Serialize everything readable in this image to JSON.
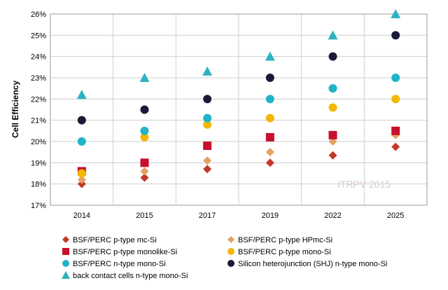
{
  "chart_data": {
    "type": "scatter",
    "ylabel": "Cell Efficiency",
    "categories": [
      "2014",
      "2015",
      "2017",
      "2019",
      "2022",
      "2025"
    ],
    "ylim": [
      0.17,
      0.26
    ],
    "yticks": [
      "17%",
      "18%",
      "19%",
      "20%",
      "21%",
      "22%",
      "23%",
      "24%",
      "25%",
      "26%"
    ],
    "grid": true,
    "legend_position": "bottom",
    "watermark": "ITRPV 2015",
    "series": [
      {
        "name": "BSF/PERC p-type mc-Si",
        "marker": "diamond",
        "color": "#c0392b",
        "values": [
          0.18,
          0.183,
          0.187,
          0.19,
          0.1935,
          0.1975
        ]
      },
      {
        "name": "BSF/PERC p-type HPmc-Si",
        "marker": "diamond",
        "color": "#e6a063",
        "values": [
          0.182,
          0.186,
          0.191,
          0.195,
          0.2,
          0.203
        ]
      },
      {
        "name": "BSF/PERC p-type monolike-Si",
        "marker": "square",
        "color": "#c8102e",
        "values": [
          0.186,
          0.19,
          0.198,
          0.202,
          0.203,
          0.205
        ]
      },
      {
        "name": "BSF/PERC p-type mono-Si",
        "marker": "circle",
        "color": "#f2b705",
        "values": [
          0.185,
          0.202,
          0.208,
          0.211,
          0.216,
          0.22
        ]
      },
      {
        "name": "BSF/PERC n-type mono-Si",
        "marker": "circle",
        "color": "#1fb5c6",
        "values": [
          0.2,
          0.205,
          0.211,
          0.22,
          0.225,
          0.23
        ]
      },
      {
        "name": "Silicon heterojunction (SHJ) n-type mono-Si",
        "marker": "circle",
        "color": "#1a1a3a",
        "values": [
          0.21,
          0.215,
          0.22,
          0.23,
          0.24,
          0.25
        ]
      },
      {
        "name": "back contact cells n-type mono-Si",
        "marker": "triangle",
        "color": "#2db3c0",
        "values": [
          0.222,
          0.23,
          0.233,
          0.24,
          0.25,
          0.26
        ]
      }
    ]
  }
}
